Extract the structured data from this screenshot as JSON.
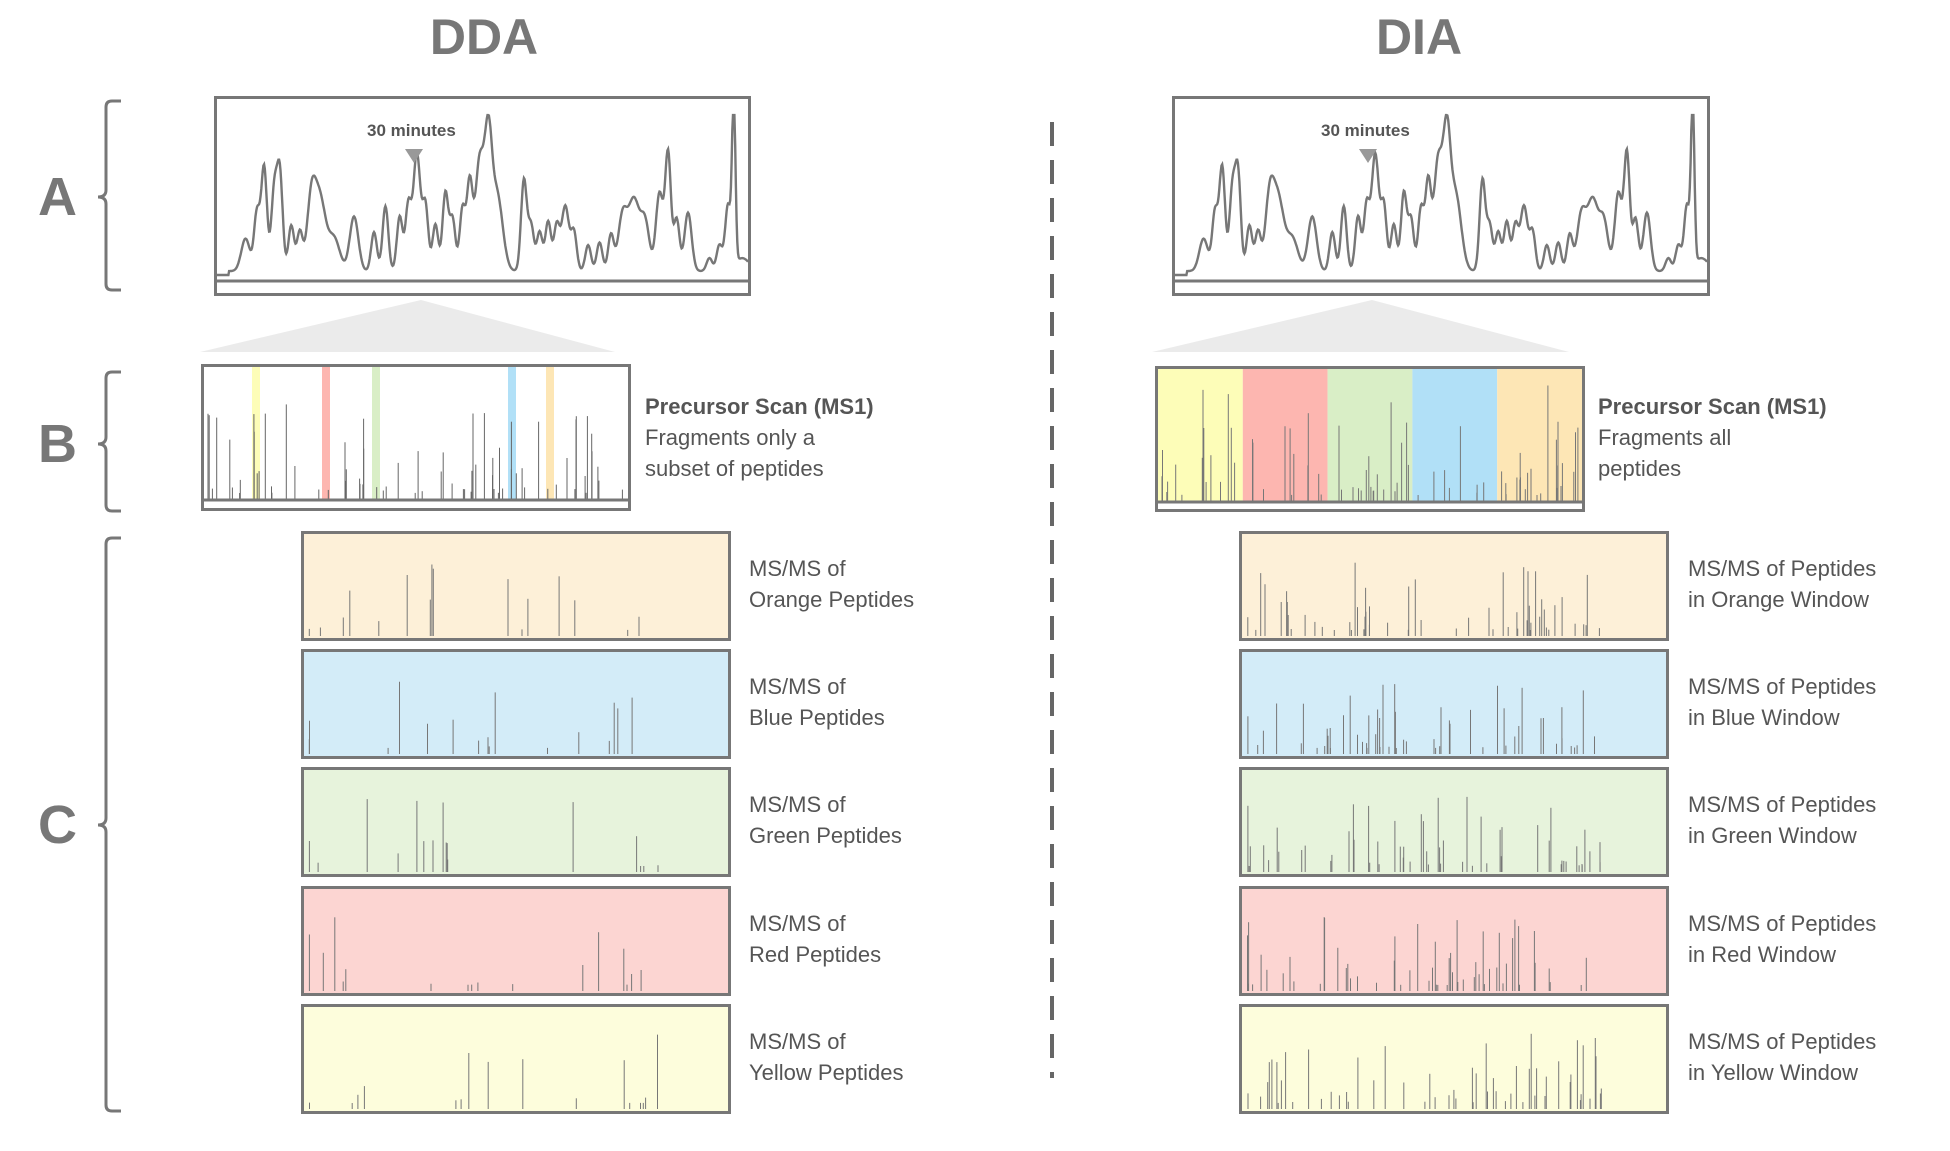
{
  "dda": {
    "title": "DDA",
    "time_label": "30 minutes",
    "ms1_title": "Precursor Scan (MS1)",
    "ms1_desc_1": "Fragments only a",
    "ms1_desc_2": "subset of peptides",
    "msms": [
      {
        "line1": "MS/MS of",
        "line2": "Orange Peptides",
        "color": "#fdf0d8"
      },
      {
        "line1": "MS/MS of",
        "line2": "Blue Peptides",
        "color": "#d3ecf8"
      },
      {
        "line1": "MS/MS of",
        "line2": "Green Peptides",
        "color": "#e7f3dc"
      },
      {
        "line1": "MS/MS of",
        "line2": "Red Peptides",
        "color": "#fcd5d2"
      },
      {
        "line1": "MS/MS of",
        "line2": "Yellow Peptides",
        "color": "#fdfddc"
      }
    ]
  },
  "dia": {
    "title": "DIA",
    "time_label": "30 minutes",
    "ms1_title": "Precursor Scan (MS1)",
    "ms1_desc_1": "Fragments all",
    "ms1_desc_2": "peptides",
    "msms": [
      {
        "line1": "MS/MS of Peptides",
        "line2": "in Orange Window",
        "color": "#fdf0d8"
      },
      {
        "line1": "MS/MS of Peptides",
        "line2": "in Blue Window",
        "color": "#d3ecf8"
      },
      {
        "line1": "MS/MS of Peptides",
        "line2": "in Green Window",
        "color": "#e7f3dc"
      },
      {
        "line1": "MS/MS of Peptides",
        "line2": "in Red Window",
        "color": "#fcd5d2"
      },
      {
        "line1": "MS/MS of Peptides",
        "line2": "in Yellow Window",
        "color": "#fdfddc"
      }
    ]
  },
  "row_labels": {
    "a": "A",
    "b": "B",
    "c": "C"
  },
  "window_colors": {
    "yellow": "#fdfdb8",
    "red": "#fdb6b0",
    "green": "#d9eec6",
    "blue": "#b1e0f7",
    "orange": "#fde6b5"
  },
  "dda_selection_colors": [
    "#fdfdb8",
    "#fdb6b0",
    "#d9eec6",
    "#b1e0f7",
    "#fde6b5"
  ]
}
